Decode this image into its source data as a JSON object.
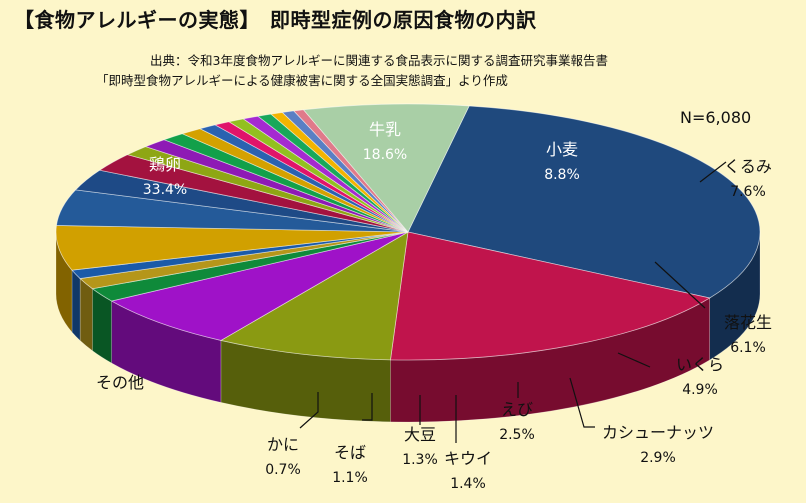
{
  "title_main": "【食物アレルギーの実態】",
  "title_sub": "即時型症例の原因食物の内訳",
  "source_line1": "出典：令和3年度食物アレルギーに関連する食品表示に関する調査研究事業報告書",
  "source_line2": "「即時型食物アレルギーによる健康被害に関する全国実態調査」より作成",
  "total_label": "N=6,080",
  "chart_data": {
    "type": "pie",
    "title": "即時型症例の原因食物の内訳",
    "slices": [
      {
        "name": "鶏卵",
        "value": 33.4,
        "value_label": "33.4%",
        "color": "#1f497d"
      },
      {
        "name": "牛乳",
        "value": 18.6,
        "value_label": "18.6%",
        "color": "#c0144c"
      },
      {
        "name": "小麦",
        "value": 8.8,
        "value_label": "8.8%",
        "color": "#8a9a12"
      },
      {
        "name": "くるみ",
        "value": 7.6,
        "value_label": "7.6%",
        "color": "#9f12c8"
      },
      {
        "name": "",
        "value": 1.9,
        "value_label": "",
        "color": "#0f8a3a"
      },
      {
        "name": "",
        "value": 1.5,
        "value_label": "",
        "color": "#b5961a"
      },
      {
        "name": "",
        "value": 1.2,
        "value_label": "",
        "color": "#1a5aa8"
      },
      {
        "name": "落花生",
        "value": 6.1,
        "value_label": "6.1%",
        "color": "#d1a000"
      },
      {
        "name": "いくら",
        "value": 4.9,
        "value_label": "4.9%",
        "color": "#245a99"
      },
      {
        "name": "カシューナッツ",
        "value": 2.9,
        "value_label": "2.9%",
        "color": "#1e4a86"
      },
      {
        "name": "えび",
        "value": 2.5,
        "value_label": "2.5%",
        "color": "#a3123f"
      },
      {
        "name": "キウイ",
        "value": 1.4,
        "value_label": "1.4%",
        "color": "#8ea614"
      },
      {
        "name": "大豆",
        "value": 1.3,
        "value_label": "1.3%",
        "color": "#8e1ab5"
      },
      {
        "name": "",
        "value": 1.2,
        "value_label": "",
        "color": "#12a04a"
      },
      {
        "name": "そば",
        "value": 1.1,
        "value_label": "1.1%",
        "color": "#d4a100"
      },
      {
        "name": "",
        "value": 0.9,
        "value_label": "",
        "color": "#2a62b0"
      },
      {
        "name": "",
        "value": 0.8,
        "value_label": "",
        "color": "#e0146a"
      },
      {
        "name": "",
        "value": 0.8,
        "value_label": "",
        "color": "#92c020"
      },
      {
        "name": "",
        "value": 0.8,
        "value_label": "",
        "color": "#a52ad0"
      },
      {
        "name": "かに",
        "value": 0.7,
        "value_label": "0.7%",
        "color": "#18a85a"
      },
      {
        "name": "",
        "value": 0.6,
        "value_label": "",
        "color": "#f2b400"
      },
      {
        "name": "",
        "value": 0.6,
        "value_label": "",
        "color": "#5a7fc4"
      },
      {
        "name": "",
        "value": 0.5,
        "value_label": "",
        "color": "#e07a8a"
      },
      {
        "name": "その他",
        "value": 8.2,
        "value_label": "",
        "color": "#a9cfa6"
      }
    ]
  }
}
